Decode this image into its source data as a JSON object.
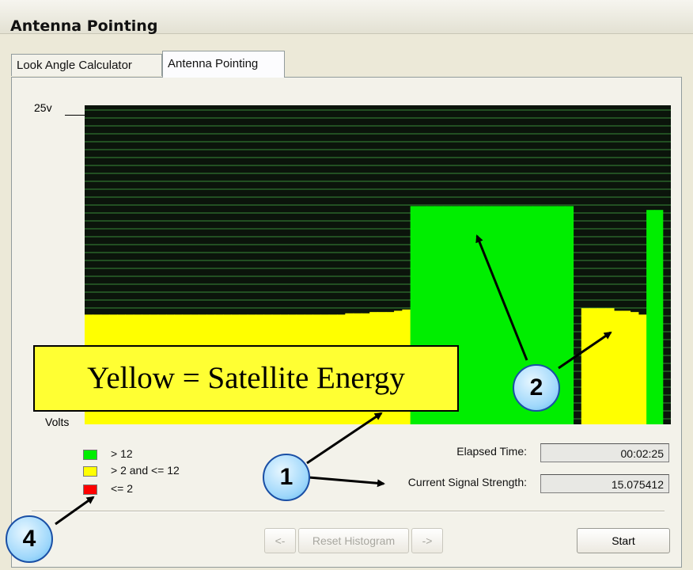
{
  "window": {
    "title": "Antenna Pointing"
  },
  "tabs": [
    {
      "label": "Look Angle Calculator",
      "active": false
    },
    {
      "label": "Antenna Pointing",
      "active": true
    }
  ],
  "chart": {
    "y_top_label": "25v",
    "y_axis_label": "Volts",
    "background_color": "#0b140b",
    "gridline_color": "#3a8a3a"
  },
  "chart_data": {
    "type": "bar",
    "title": "",
    "ylabel": "Volts",
    "ylim": [
      0,
      25
    ],
    "grid": true,
    "series": [
      {
        "color_name": "yellow",
        "color": "#ffff00",
        "values": [
          8.6,
          8.6,
          8.6,
          8.6,
          8.6,
          8.6,
          8.6,
          8.6,
          8.6,
          8.6,
          8.6,
          8.6,
          8.6,
          8.6,
          8.6,
          8.6,
          8.6,
          8.6,
          8.6,
          8.6,
          8.6,
          8.6,
          8.6,
          8.6,
          8.6,
          8.6,
          8.6,
          8.6,
          8.6,
          8.6,
          8.6,
          8.6,
          8.7,
          8.7,
          8.7,
          8.8,
          8.8,
          8.8,
          8.9,
          9.0
        ],
        "x_start": 0
      },
      {
        "color_name": "green",
        "color": "#00ee00",
        "values": [
          17.1,
          17.1,
          17.1,
          17.1,
          17.1,
          17.1,
          17.1,
          17.1,
          17.1,
          17.1,
          17.1,
          17.1,
          17.1,
          17.1,
          17.1,
          17.1,
          17.1,
          17.1,
          17.1,
          17.1
        ],
        "x_start": 40
      },
      {
        "color_name": "yellow",
        "color": "#ffff00",
        "values": [
          9.1,
          9.1,
          9.1,
          9.1,
          8.9,
          8.9,
          8.8,
          8.6
        ],
        "x_start": 61
      },
      {
        "color_name": "green",
        "color": "#00ee00",
        "values": [
          16.8,
          16.8
        ],
        "x_start": 69
      }
    ]
  },
  "legend": [
    {
      "label": "> 12",
      "color": "#00ee00"
    },
    {
      "label": "> 2 and <= 12",
      "color": "#ffff00"
    },
    {
      "label": "<= 2",
      "color": "#ff0000"
    }
  ],
  "fields": {
    "elapsed_label": "Elapsed Time:",
    "elapsed_value": "00:02:25",
    "signal_label": "Current Signal Strength:",
    "signal_value": "15.075412"
  },
  "buttons": {
    "prev": "<-",
    "reset": "Reset Histogram",
    "next": "->",
    "start": "Start"
  },
  "annotations": {
    "callout_text": "Yellow = Satellite Energy",
    "badges": [
      "1",
      "2",
      "4"
    ]
  }
}
